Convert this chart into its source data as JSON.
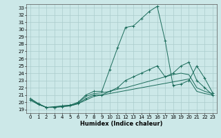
{
  "xlabel": "Humidex (Indice chaleur)",
  "ylabel": "",
  "xlim": [
    -0.5,
    23.5
  ],
  "ylim": [
    18.5,
    33.5
  ],
  "background_color": "#cce8e8",
  "grid_color": "#aacccc",
  "line_color": "#1a6b5a",
  "xticks": [
    0,
    1,
    2,
    3,
    4,
    5,
    6,
    7,
    8,
    9,
    10,
    11,
    12,
    13,
    14,
    15,
    16,
    17,
    18,
    19,
    20,
    21,
    22,
    23
  ],
  "yticks": [
    19,
    20,
    21,
    22,
    23,
    24,
    25,
    26,
    27,
    28,
    29,
    30,
    31,
    32,
    33
  ],
  "lines": [
    {
      "x": [
        0,
        1,
        2,
        3,
        4,
        5,
        6,
        7,
        8,
        9,
        10,
        11,
        12,
        13,
        14,
        15,
        16,
        17,
        18,
        19,
        20,
        21,
        22,
        23
      ],
      "y": [
        20.5,
        19.8,
        19.3,
        19.3,
        19.5,
        19.6,
        20.0,
        21.0,
        21.5,
        21.5,
        24.5,
        27.5,
        30.3,
        30.5,
        31.5,
        32.5,
        33.2,
        28.5,
        22.3,
        22.5,
        23.0,
        25.0,
        23.3,
        21.3
      ],
      "marker": "+"
    },
    {
      "x": [
        0,
        1,
        2,
        3,
        4,
        5,
        6,
        7,
        8,
        9,
        10,
        11,
        12,
        13,
        14,
        15,
        16,
        17,
        18,
        19,
        20,
        21,
        22,
        23
      ],
      "y": [
        20.3,
        19.7,
        19.3,
        19.3,
        19.4,
        19.5,
        19.8,
        20.5,
        21.0,
        21.0,
        21.5,
        22.0,
        23.0,
        23.5,
        24.0,
        24.5,
        25.0,
        23.5,
        24.0,
        25.0,
        25.5,
        23.0,
        22.0,
        21.0
      ],
      "marker": "+"
    },
    {
      "x": [
        0,
        1,
        2,
        3,
        4,
        5,
        6,
        7,
        8,
        9,
        10,
        11,
        12,
        13,
        14,
        15,
        16,
        17,
        18,
        19,
        20,
        21,
        22,
        23
      ],
      "y": [
        20.3,
        19.7,
        19.3,
        19.3,
        19.4,
        19.5,
        19.8,
        20.3,
        20.8,
        21.0,
        21.2,
        21.4,
        21.6,
        21.8,
        22.0,
        22.2,
        22.4,
        22.6,
        22.8,
        23.0,
        23.2,
        21.5,
        21.2,
        21.0
      ],
      "marker": null
    },
    {
      "x": [
        0,
        1,
        2,
        3,
        4,
        5,
        6,
        7,
        8,
        9,
        10,
        11,
        12,
        13,
        14,
        15,
        16,
        17,
        18,
        19,
        20,
        21,
        22,
        23
      ],
      "y": [
        20.5,
        19.8,
        19.3,
        19.4,
        19.5,
        19.6,
        19.9,
        20.8,
        21.2,
        21.3,
        21.5,
        21.8,
        22.0,
        22.3,
        22.6,
        22.9,
        23.2,
        23.5,
        23.8,
        24.0,
        23.8,
        22.0,
        21.5,
        21.2
      ],
      "marker": null
    }
  ]
}
